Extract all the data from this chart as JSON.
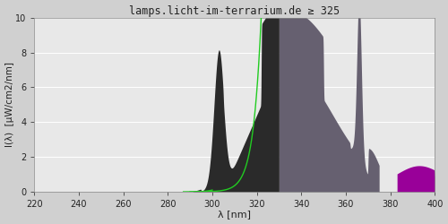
{
  "title": "lamps.licht-im-terrarium.de ≥ 325",
  "xlabel": "λ [nm]",
  "ylabel": "I(λ)  [μW/cm2/nm]",
  "xlim": [
    220,
    400
  ],
  "ylim": [
    0,
    10
  ],
  "xticks": [
    220,
    240,
    260,
    280,
    300,
    320,
    340,
    360,
    380,
    400
  ],
  "yticks": [
    0,
    2,
    4,
    6,
    8,
    10
  ],
  "bg_outer": "#d0d0d0",
  "bg_inner": "#e8e8e8",
  "grid_color": "#f0f0f0",
  "col_dark_gray": "#2a2a2a",
  "col_mid_gray": "#666070",
  "col_spike_gray": "#555060",
  "col_purple": "#990099",
  "col_green": "#22cc22",
  "title_color": "#222222",
  "axis_color": "#222222",
  "title_fontsize": 8.5,
  "tick_fontsize": 7,
  "label_fontsize": 8
}
